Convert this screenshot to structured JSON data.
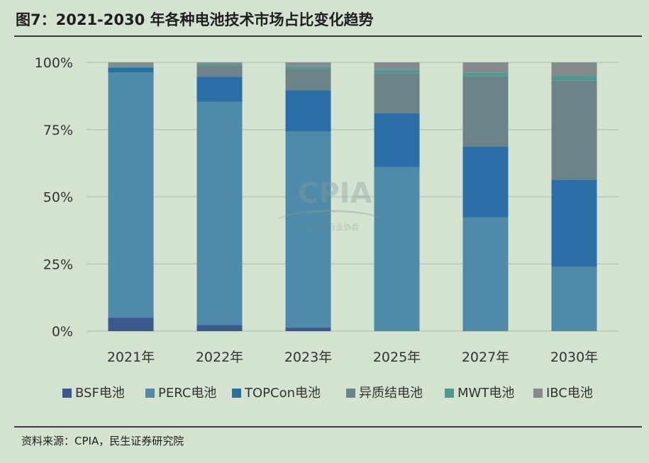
{
  "header": {
    "title": "图7：2021-2030 年各种电池技术市场占比变化趋势"
  },
  "footer": {
    "source": "资料来源：CPIA，民生证券研究院"
  },
  "watermark": {
    "text": "CPIA",
    "subtitle": "中国光伏行业协会"
  },
  "colors": {
    "background": "#d4e2d0",
    "grid": "#b9c7b6",
    "axis_text": "#333333",
    "BSF": "#3a5a8e",
    "PERC": "#4e8ba8",
    "TOPCon": "#2a6ea8",
    "HJT": "#6c8388",
    "MWT": "#4d9a92",
    "IBC": "#858a8c"
  },
  "chart_data": {
    "type": "bar",
    "stacked": true,
    "categories": [
      "2021年",
      "2022年",
      "2023年",
      "2025年",
      "2027年",
      "2030年"
    ],
    "yticks": [
      "0%",
      "25%",
      "50%",
      "75%",
      "100%"
    ],
    "ylim": [
      0,
      100
    ],
    "grid": true,
    "legend_position": "bottom",
    "series": [
      {
        "name": "BSF电池",
        "color_key": "BSF",
        "values": [
          5,
          2.3,
          1.3,
          0,
          0,
          0
        ]
      },
      {
        "name": "PERC电池",
        "color_key": "PERC",
        "values": [
          91.3,
          83,
          73,
          61,
          42.3,
          24
        ]
      },
      {
        "name": "TOPCon电池",
        "color_key": "TOPCon",
        "values": [
          1.7,
          9.3,
          15.3,
          20,
          26.3,
          32.2
        ]
      },
      {
        "name": "异质结电池",
        "color_key": "HJT",
        "values": [
          0,
          4.3,
          8,
          15,
          26.2,
          37
        ]
      },
      {
        "name": "MWT电池",
        "color_key": "MWT",
        "values": [
          0.5,
          0.6,
          0.9,
          1.3,
          1.3,
          1.8
        ]
      },
      {
        "name": "IBC电池",
        "color_key": "IBC",
        "values": [
          1.5,
          0.5,
          1.5,
          2.7,
          3.9,
          5
        ]
      }
    ]
  }
}
